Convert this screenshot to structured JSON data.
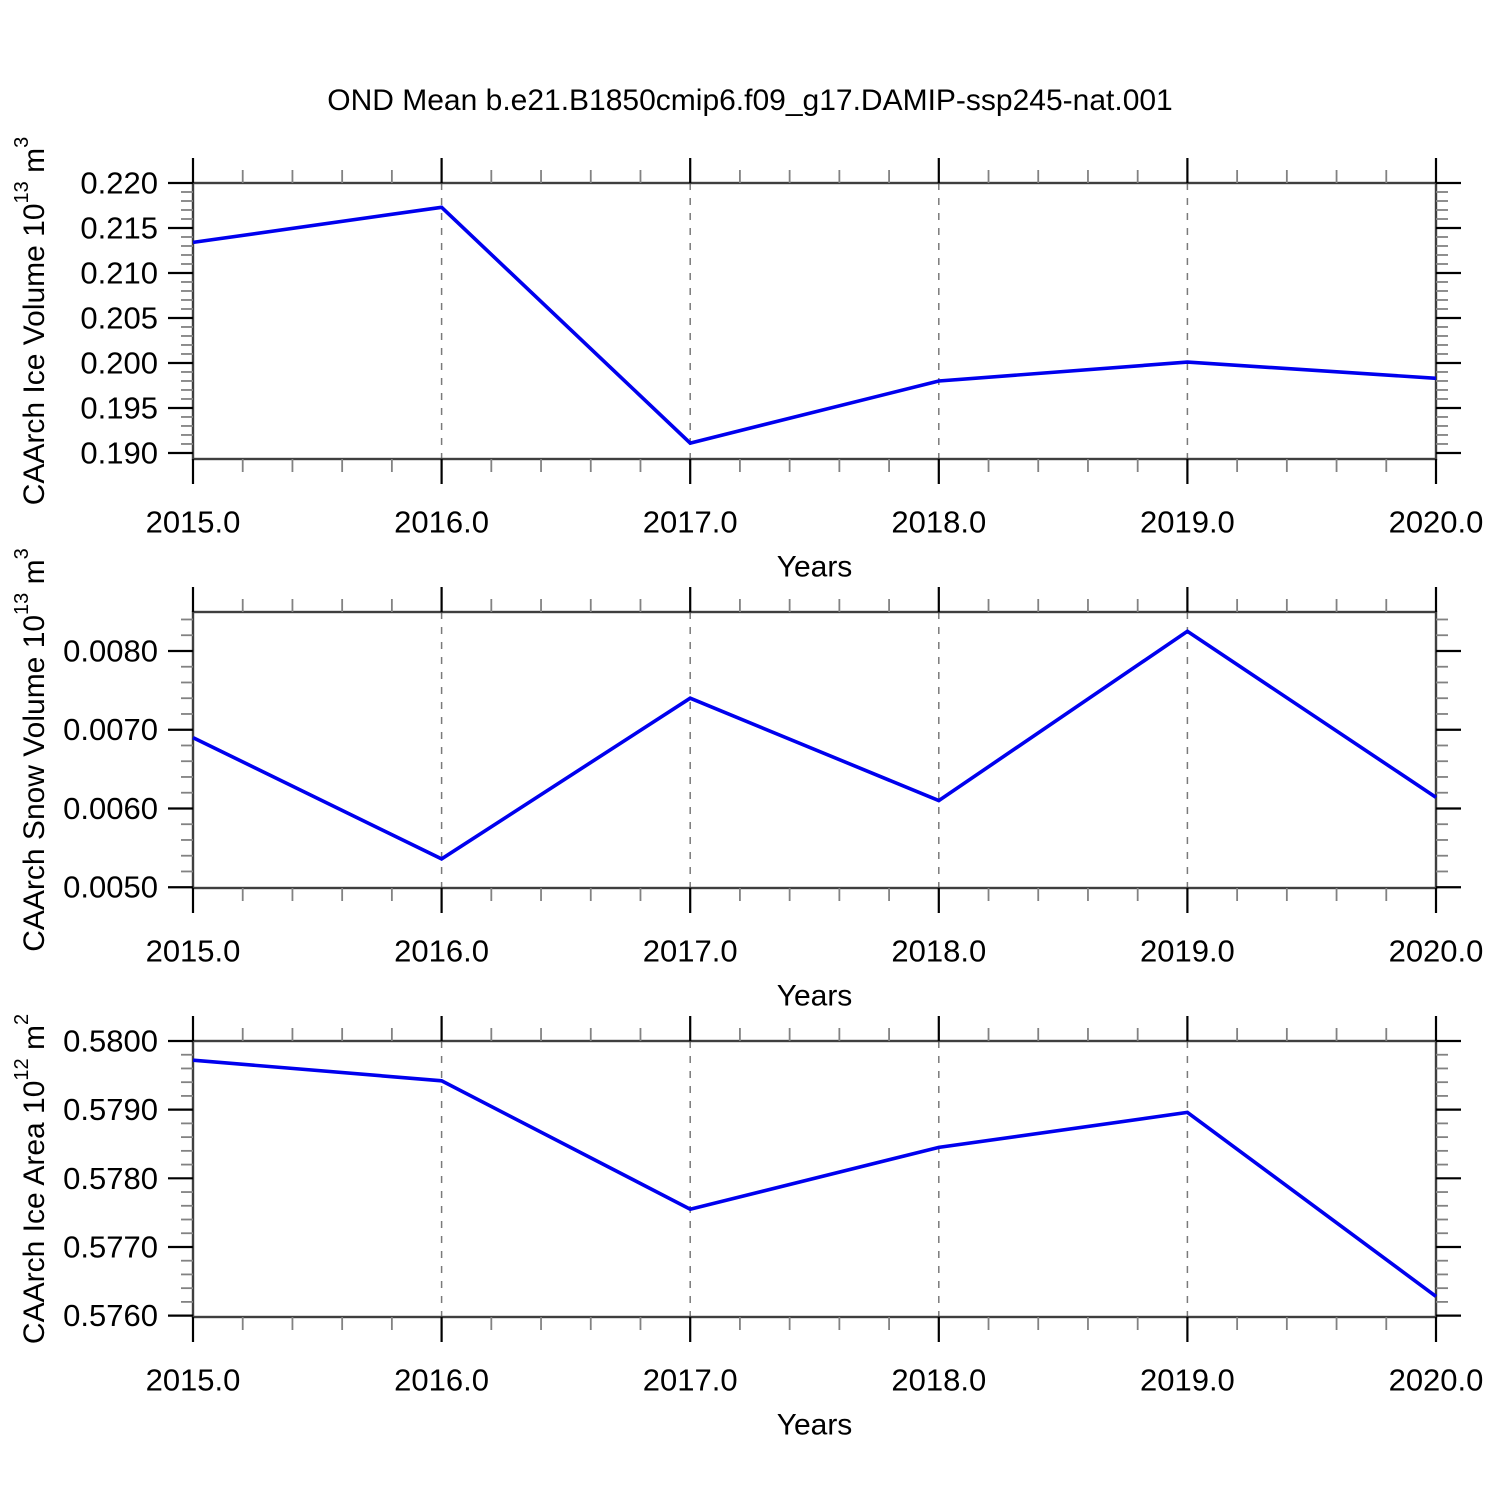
{
  "title": "OND Mean b.e21.B1850cmip6.f09_g17.DAMIP-ssp245-nat.001",
  "line_color": "#0000ee",
  "chart_data": [
    {
      "id": "ice-volume",
      "type": "line",
      "title": "",
      "xlabel": "Years",
      "ylabel_parts": [
        {
          "t": "CAArch Ice Volume 10",
          "sup": false
        },
        {
          "t": "13",
          "sup": true
        },
        {
          "t": " m",
          "sup": false
        },
        {
          "t": "3",
          "sup": true
        }
      ],
      "x": [
        2015.0,
        2016.0,
        2017.0,
        2018.0,
        2019.0,
        2020.0
      ],
      "values": [
        0.2134,
        0.2173,
        0.1911,
        0.198,
        0.2001,
        0.1983
      ],
      "xtick_labels": [
        "2015.0",
        "2016.0",
        "2017.0",
        "2018.0",
        "2019.0",
        "2020.0"
      ],
      "xlim": [
        2015.0,
        2020.0
      ],
      "xminor_step": 0.2,
      "grid_years": [
        2016.0,
        2017.0,
        2018.0,
        2019.0
      ],
      "yticks": [
        0.19,
        0.195,
        0.2,
        0.205,
        0.21,
        0.215,
        0.22
      ],
      "ytick_labels": [
        "0.190",
        "0.195",
        "0.200",
        "0.205",
        "0.210",
        "0.215",
        "0.220"
      ],
      "ylim": [
        0.18933,
        0.22
      ],
      "yminor_step": 0.001,
      "grid": "vertical-dashed",
      "legend": "none"
    },
    {
      "id": "snow-volume",
      "type": "line",
      "title": "",
      "xlabel": "Years",
      "ylabel_parts": [
        {
          "t": "CAArch Snow Volume 10",
          "sup": false
        },
        {
          "t": "13",
          "sup": true
        },
        {
          "t": " m",
          "sup": false
        },
        {
          "t": "3",
          "sup": true
        }
      ],
      "x": [
        2015.0,
        2016.0,
        2017.0,
        2018.0,
        2019.0,
        2020.0
      ],
      "values": [
        0.0069,
        0.00536,
        0.0074,
        0.0061,
        0.00825,
        0.00614
      ],
      "xtick_labels": [
        "2015.0",
        "2016.0",
        "2017.0",
        "2018.0",
        "2019.0",
        "2020.0"
      ],
      "xlim": [
        2015.0,
        2020.0
      ],
      "xminor_step": 0.2,
      "grid_years": [
        2016.0,
        2017.0,
        2018.0,
        2019.0
      ],
      "yticks": [
        0.005,
        0.006,
        0.007,
        0.008
      ],
      "ytick_labels": [
        "0.0050",
        "0.0060",
        "0.0070",
        "0.0080"
      ],
      "ylim": [
        0.00499,
        0.008495
      ],
      "yminor_step": 0.0002,
      "grid": "vertical-dashed",
      "legend": "none"
    },
    {
      "id": "ice-area",
      "type": "line",
      "title": "",
      "xlabel": "Years",
      "ylabel_parts": [
        {
          "t": "CAArch Ice Area 10",
          "sup": false
        },
        {
          "t": "12",
          "sup": true
        },
        {
          "t": " m",
          "sup": false
        },
        {
          "t": "2",
          "sup": true
        }
      ],
      "x": [
        2015.0,
        2016.0,
        2017.0,
        2018.0,
        2019.0,
        2020.0
      ],
      "values": [
        0.57972,
        0.57942,
        0.57755,
        0.57845,
        0.57896,
        0.57628
      ],
      "xtick_labels": [
        "2015.0",
        "2016.0",
        "2017.0",
        "2018.0",
        "2019.0",
        "2020.0"
      ],
      "xlim": [
        2015.0,
        2020.0
      ],
      "xminor_step": 0.2,
      "grid_years": [
        2016.0,
        2017.0,
        2018.0,
        2019.0
      ],
      "yticks": [
        0.576,
        0.577,
        0.578,
        0.579,
        0.58
      ],
      "ytick_labels": [
        "0.5760",
        "0.5770",
        "0.5780",
        "0.5790",
        "0.5800"
      ],
      "ylim": [
        0.57598,
        0.58
      ],
      "yminor_step": 0.0002,
      "grid": "vertical-dashed",
      "legend": "none"
    }
  ]
}
